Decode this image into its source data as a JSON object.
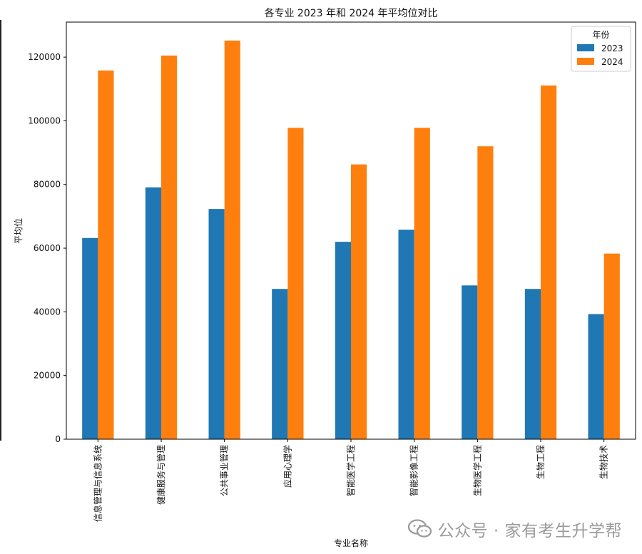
{
  "chart_data": {
    "type": "bar",
    "title": "各专业 2023 年和 2024 年平均位对比",
    "xlabel": "专业名称",
    "ylabel": "平均位",
    "categories": [
      "信息管理与信息系统",
      "健康服务与管理",
      "公共事业管理",
      "应用心理学",
      "智能医学工程",
      "智能影像工程",
      "生物医学工程",
      "生物工程",
      "生物技术"
    ],
    "series": [
      {
        "name": "2023",
        "color": "#1f77b4",
        "values": [
          63200,
          79100,
          72300,
          47200,
          62000,
          65800,
          48300,
          47200,
          39300
        ]
      },
      {
        "name": "2024",
        "color": "#ff7f0e",
        "values": [
          115800,
          120500,
          125200,
          97800,
          86300,
          97800,
          92000,
          111100,
          58300
        ]
      }
    ],
    "ylim": [
      0,
      131000
    ],
    "yticks": [
      0,
      20000,
      40000,
      60000,
      80000,
      100000,
      120000
    ],
    "grid": false,
    "legend": {
      "title": "年份",
      "position": "top-right"
    }
  },
  "watermark": {
    "text": "公众号 · 家有考生升学帮",
    "icon": "wechat-icon"
  }
}
